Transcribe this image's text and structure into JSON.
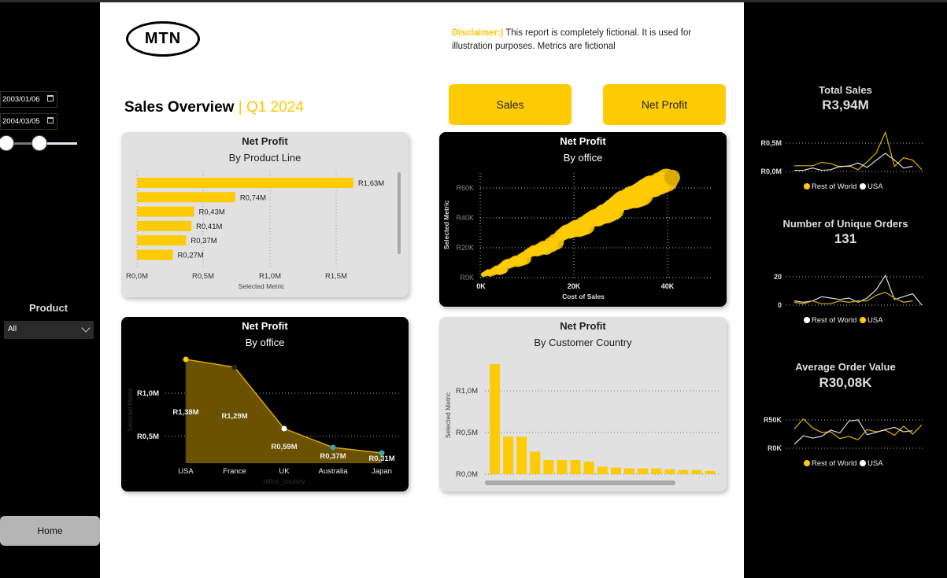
{
  "filters": {
    "date_start": "2003/01/06",
    "date_end": "2004/03/05",
    "product_label": "Product",
    "product_value": "All"
  },
  "nav": {
    "home_label": "Home",
    "sales_label": "Sales",
    "net_profit_label": "Net Profit"
  },
  "header": {
    "logo_text": "MTN",
    "title": "Sales Overview",
    "separator": "|",
    "period": "Q1 2024",
    "disclaimer_label": "Disclaimer:|",
    "disclaimer_text": " This report is completely fictional. It is used for illustration purposes. Metrics are fictional"
  },
  "colors": {
    "accent": "#ffcb05",
    "dark": "#000000",
    "card_light": "#e1e1e1",
    "teal": "#3aa6b0"
  },
  "kpis": [
    {
      "title": "Total Sales",
      "value": "R3,94M",
      "legend": [
        "Rest of World",
        "USA"
      ]
    },
    {
      "title": "Number of Unique Orders",
      "value": "131",
      "legend": [
        "Rest of World",
        "USA"
      ]
    },
    {
      "title": "Average Order Value",
      "value": "R30,08K",
      "legend": [
        "Rest of World",
        "USA"
      ]
    }
  ],
  "cards": {
    "product_line": {
      "title": "Net Profit",
      "subtitle": "By Product Line"
    },
    "office_scatter": {
      "title": "Net Profit",
      "subtitle": "By office"
    },
    "office_area": {
      "title": "Net Profit",
      "subtitle": "By office"
    },
    "customer_country": {
      "title": "Net Profit",
      "subtitle": "By Customer Country"
    }
  },
  "chart_data": [
    {
      "type": "bar",
      "orientation": "horizontal",
      "title": "Net Profit By Product Line",
      "xlabel": "Selected Metric",
      "x_ticks": [
        "R0,0M",
        "R0,5M",
        "R1,0M",
        "R1,5M"
      ],
      "values": [
        1.63,
        0.74,
        0.43,
        0.41,
        0.37,
        0.27
      ],
      "labels": [
        "R1,63M",
        "R0,74M",
        "R0,43M",
        "R0,41M",
        "R0,37M",
        "R0,27M"
      ],
      "xlim": [
        0,
        1.8
      ]
    },
    {
      "type": "scatter",
      "title": "Net Profit By office",
      "xlabel": "Cost of Sales",
      "ylabel": "Selected Metric",
      "x_ticks": [
        "0K",
        "20K",
        "40K"
      ],
      "y_ticks": [
        "R0K",
        "R20K",
        "R40K",
        "R60K"
      ],
      "points_note": "dense bubble cluster along a line from (0,0) to (41K, 67K)",
      "points": [
        [
          0.5,
          1
        ],
        [
          2,
          3
        ],
        [
          4,
          6
        ],
        [
          5,
          8
        ],
        [
          6,
          9
        ],
        [
          8,
          12
        ],
        [
          10,
          15
        ],
        [
          12,
          18
        ],
        [
          14,
          21
        ],
        [
          17,
          27
        ],
        [
          19,
          31
        ],
        [
          21,
          34
        ],
        [
          23,
          37
        ],
        [
          25,
          40
        ],
        [
          27,
          44
        ],
        [
          29,
          48
        ],
        [
          31,
          52
        ],
        [
          33,
          55
        ],
        [
          35,
          58
        ],
        [
          37,
          61
        ],
        [
          41,
          67
        ]
      ]
    },
    {
      "type": "area",
      "title": "Net Profit By office",
      "xlabel": "office_country",
      "ylabel": "Selected Metric",
      "categories": [
        "USA",
        "France",
        "UK",
        "Australia",
        "Japan"
      ],
      "values": [
        1.38,
        1.29,
        0.59,
        0.37,
        0.31
      ],
      "labels": [
        "R1,38M",
        "R1,29M",
        "R0,59M",
        "R0,37M",
        "R0,31M"
      ],
      "y_ticks": [
        "R0,5M",
        "R1,0M"
      ]
    },
    {
      "type": "bar",
      "title": "Net Profit By Customer Country",
      "ylabel": "Selected Metric",
      "y_ticks": [
        "R0,0M",
        "R0,5M",
        "R1,0M"
      ],
      "values": [
        1.32,
        0.45,
        0.45,
        0.27,
        0.17,
        0.17,
        0.17,
        0.15,
        0.09,
        0.08,
        0.07,
        0.07,
        0.07,
        0.06,
        0.05,
        0.05,
        0.04
      ]
    },
    {
      "type": "line",
      "title": "Total Sales",
      "y_ticks": [
        "R0,0M",
        "R0,5M"
      ],
      "series": [
        {
          "name": "Rest of World",
          "color": "#e0b000",
          "values": [
            0.1,
            0.1,
            0.1,
            0.16,
            0.14,
            0.08,
            0.1,
            0.03,
            0.17,
            0.33,
            0.69,
            0.09,
            0.24,
            0.2,
            0.03
          ]
        },
        {
          "name": "USA",
          "color": "#dddddd",
          "values": [
            0.02,
            0.02,
            0.06,
            0.02,
            0.03,
            0.09,
            0.09,
            0.15,
            0.07,
            0.2,
            0.32,
            0.2,
            0.06,
            0.09
          ]
        }
      ]
    },
    {
      "type": "line",
      "title": "Number of Unique Orders",
      "y_ticks": [
        "0",
        "20"
      ],
      "series": [
        {
          "name": "Rest of World",
          "color": "#dddddd",
          "values": [
            3,
            2,
            3,
            6,
            5,
            4,
            5,
            2,
            5,
            11,
            21,
            4,
            6,
            8,
            0
          ]
        },
        {
          "name": "USA",
          "color": "#e0b000",
          "values": [
            2,
            1,
            3,
            1,
            1,
            3,
            2,
            3,
            3,
            7,
            9,
            5,
            2,
            3
          ]
        }
      ]
    },
    {
      "type": "line",
      "title": "Average Order Value",
      "y_ticks": [
        "R0K",
        "R50K"
      ],
      "series": [
        {
          "name": "Rest of World",
          "color": "#e0b000",
          "values": [
            34,
            52,
            36,
            28,
            29,
            17,
            21,
            15,
            33,
            29,
            32,
            23,
            39,
            25,
            41
          ]
        },
        {
          "name": "USA",
          "color": "#dddddd",
          "values": [
            7,
            22,
            18,
            21,
            32,
            27,
            48,
            50,
            24,
            28,
            33,
            37,
            29,
            31
          ]
        }
      ]
    }
  ]
}
